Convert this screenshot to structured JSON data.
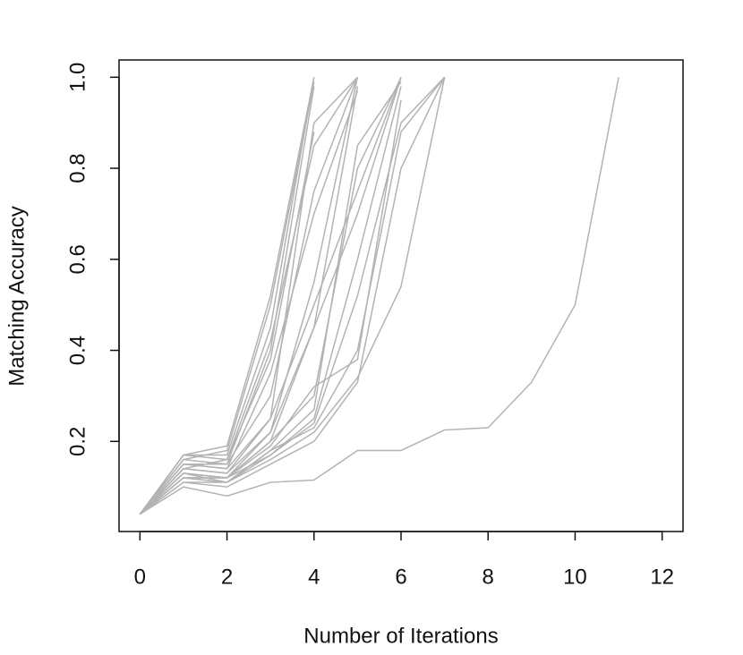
{
  "chart_data": {
    "type": "line",
    "x_label": "Number of Iterations",
    "y_label": "Matching Accuracy",
    "x": [
      0,
      1,
      2,
      3,
      4,
      5,
      6,
      7,
      8,
      9,
      10,
      11
    ],
    "color": "#b3b3b3",
    "series": [
      {
        "values": [
          0.04,
          0.17,
          0.19,
          0.52,
          1.0,
          null,
          null,
          null,
          null,
          null,
          null,
          null
        ]
      },
      {
        "values": [
          0.04,
          0.16,
          0.18,
          0.5,
          0.99,
          null,
          null,
          null,
          null,
          null,
          null,
          null
        ]
      },
      {
        "values": [
          0.04,
          0.15,
          0.15,
          0.4,
          0.98,
          null,
          null,
          null,
          null,
          null,
          null,
          null
        ]
      },
      {
        "values": [
          0.04,
          0.14,
          0.16,
          0.38,
          0.88,
          null,
          null,
          null,
          null,
          null,
          null,
          null
        ]
      },
      {
        "values": [
          0.04,
          0.17,
          0.17,
          0.45,
          1.0,
          null,
          null,
          null,
          null,
          null,
          null,
          null
        ]
      },
      {
        "values": [
          0.04,
          0.16,
          0.15,
          0.3,
          0.75,
          1.0,
          null,
          null,
          null,
          null,
          null,
          null
        ]
      },
      {
        "values": [
          0.04,
          0.14,
          0.13,
          0.25,
          0.9,
          1.0,
          null,
          null,
          null,
          null,
          null,
          null
        ]
      },
      {
        "values": [
          0.04,
          0.13,
          0.12,
          0.22,
          0.55,
          1.0,
          null,
          null,
          null,
          null,
          null,
          null
        ]
      },
      {
        "values": [
          0.04,
          0.15,
          0.14,
          0.35,
          0.7,
          0.97,
          null,
          null,
          null,
          null,
          null,
          null
        ]
      },
      {
        "values": [
          0.04,
          0.12,
          0.12,
          0.2,
          0.45,
          0.98,
          null,
          null,
          null,
          null,
          null,
          null
        ]
      },
      {
        "values": [
          0.04,
          0.17,
          0.16,
          0.42,
          0.85,
          1.0,
          null,
          null,
          null,
          null,
          null,
          null
        ]
      },
      {
        "values": [
          0.04,
          0.13,
          0.12,
          0.2,
          0.3,
          0.8,
          1.0,
          null,
          null,
          null,
          null,
          null
        ]
      },
      {
        "values": [
          0.04,
          0.12,
          0.11,
          0.18,
          0.27,
          0.85,
          0.99,
          null,
          null,
          null,
          null,
          null
        ]
      },
      {
        "values": [
          0.04,
          0.14,
          0.13,
          0.22,
          0.45,
          0.7,
          1.0,
          null,
          null,
          null,
          null,
          null
        ]
      },
      {
        "values": [
          0.04,
          0.11,
          0.11,
          0.17,
          0.25,
          0.6,
          0.98,
          null,
          null,
          null,
          null,
          null
        ]
      },
      {
        "values": [
          0.04,
          0.15,
          0.14,
          0.25,
          0.5,
          0.75,
          1.0,
          null,
          null,
          null,
          null,
          null
        ]
      },
      {
        "values": [
          0.04,
          0.13,
          0.12,
          0.19,
          0.32,
          0.38,
          0.95,
          null,
          null,
          null,
          null,
          null
        ]
      },
      {
        "values": [
          0.04,
          0.12,
          0.11,
          0.16,
          0.22,
          0.34,
          0.54,
          1.0,
          null,
          null,
          null,
          null
        ]
      },
      {
        "values": [
          0.04,
          0.11,
          0.1,
          0.15,
          0.2,
          0.33,
          0.8,
          1.0,
          null,
          null,
          null,
          null
        ]
      },
      {
        "values": [
          0.04,
          0.12,
          0.12,
          0.17,
          0.24,
          0.52,
          0.9,
          1.0,
          null,
          null,
          null,
          null
        ]
      },
      {
        "values": [
          0.04,
          0.13,
          0.11,
          0.18,
          0.23,
          0.4,
          0.88,
          1.0,
          null,
          null,
          null,
          null
        ]
      },
      {
        "values": [
          0.04,
          0.1,
          0.08,
          0.11,
          0.115,
          0.18,
          0.18,
          0.225,
          0.23,
          0.33,
          0.5,
          1.0
        ]
      }
    ],
    "xlim": [
      -0.48,
      12.48
    ],
    "xticks": [
      0,
      2,
      4,
      6,
      8,
      10,
      12
    ],
    "ylim": [
      0.002,
      1.038
    ],
    "yticks": [
      0.2,
      0.4,
      0.6,
      0.8,
      {
        "value": 1,
        "label": "1.0"
      }
    ]
  }
}
